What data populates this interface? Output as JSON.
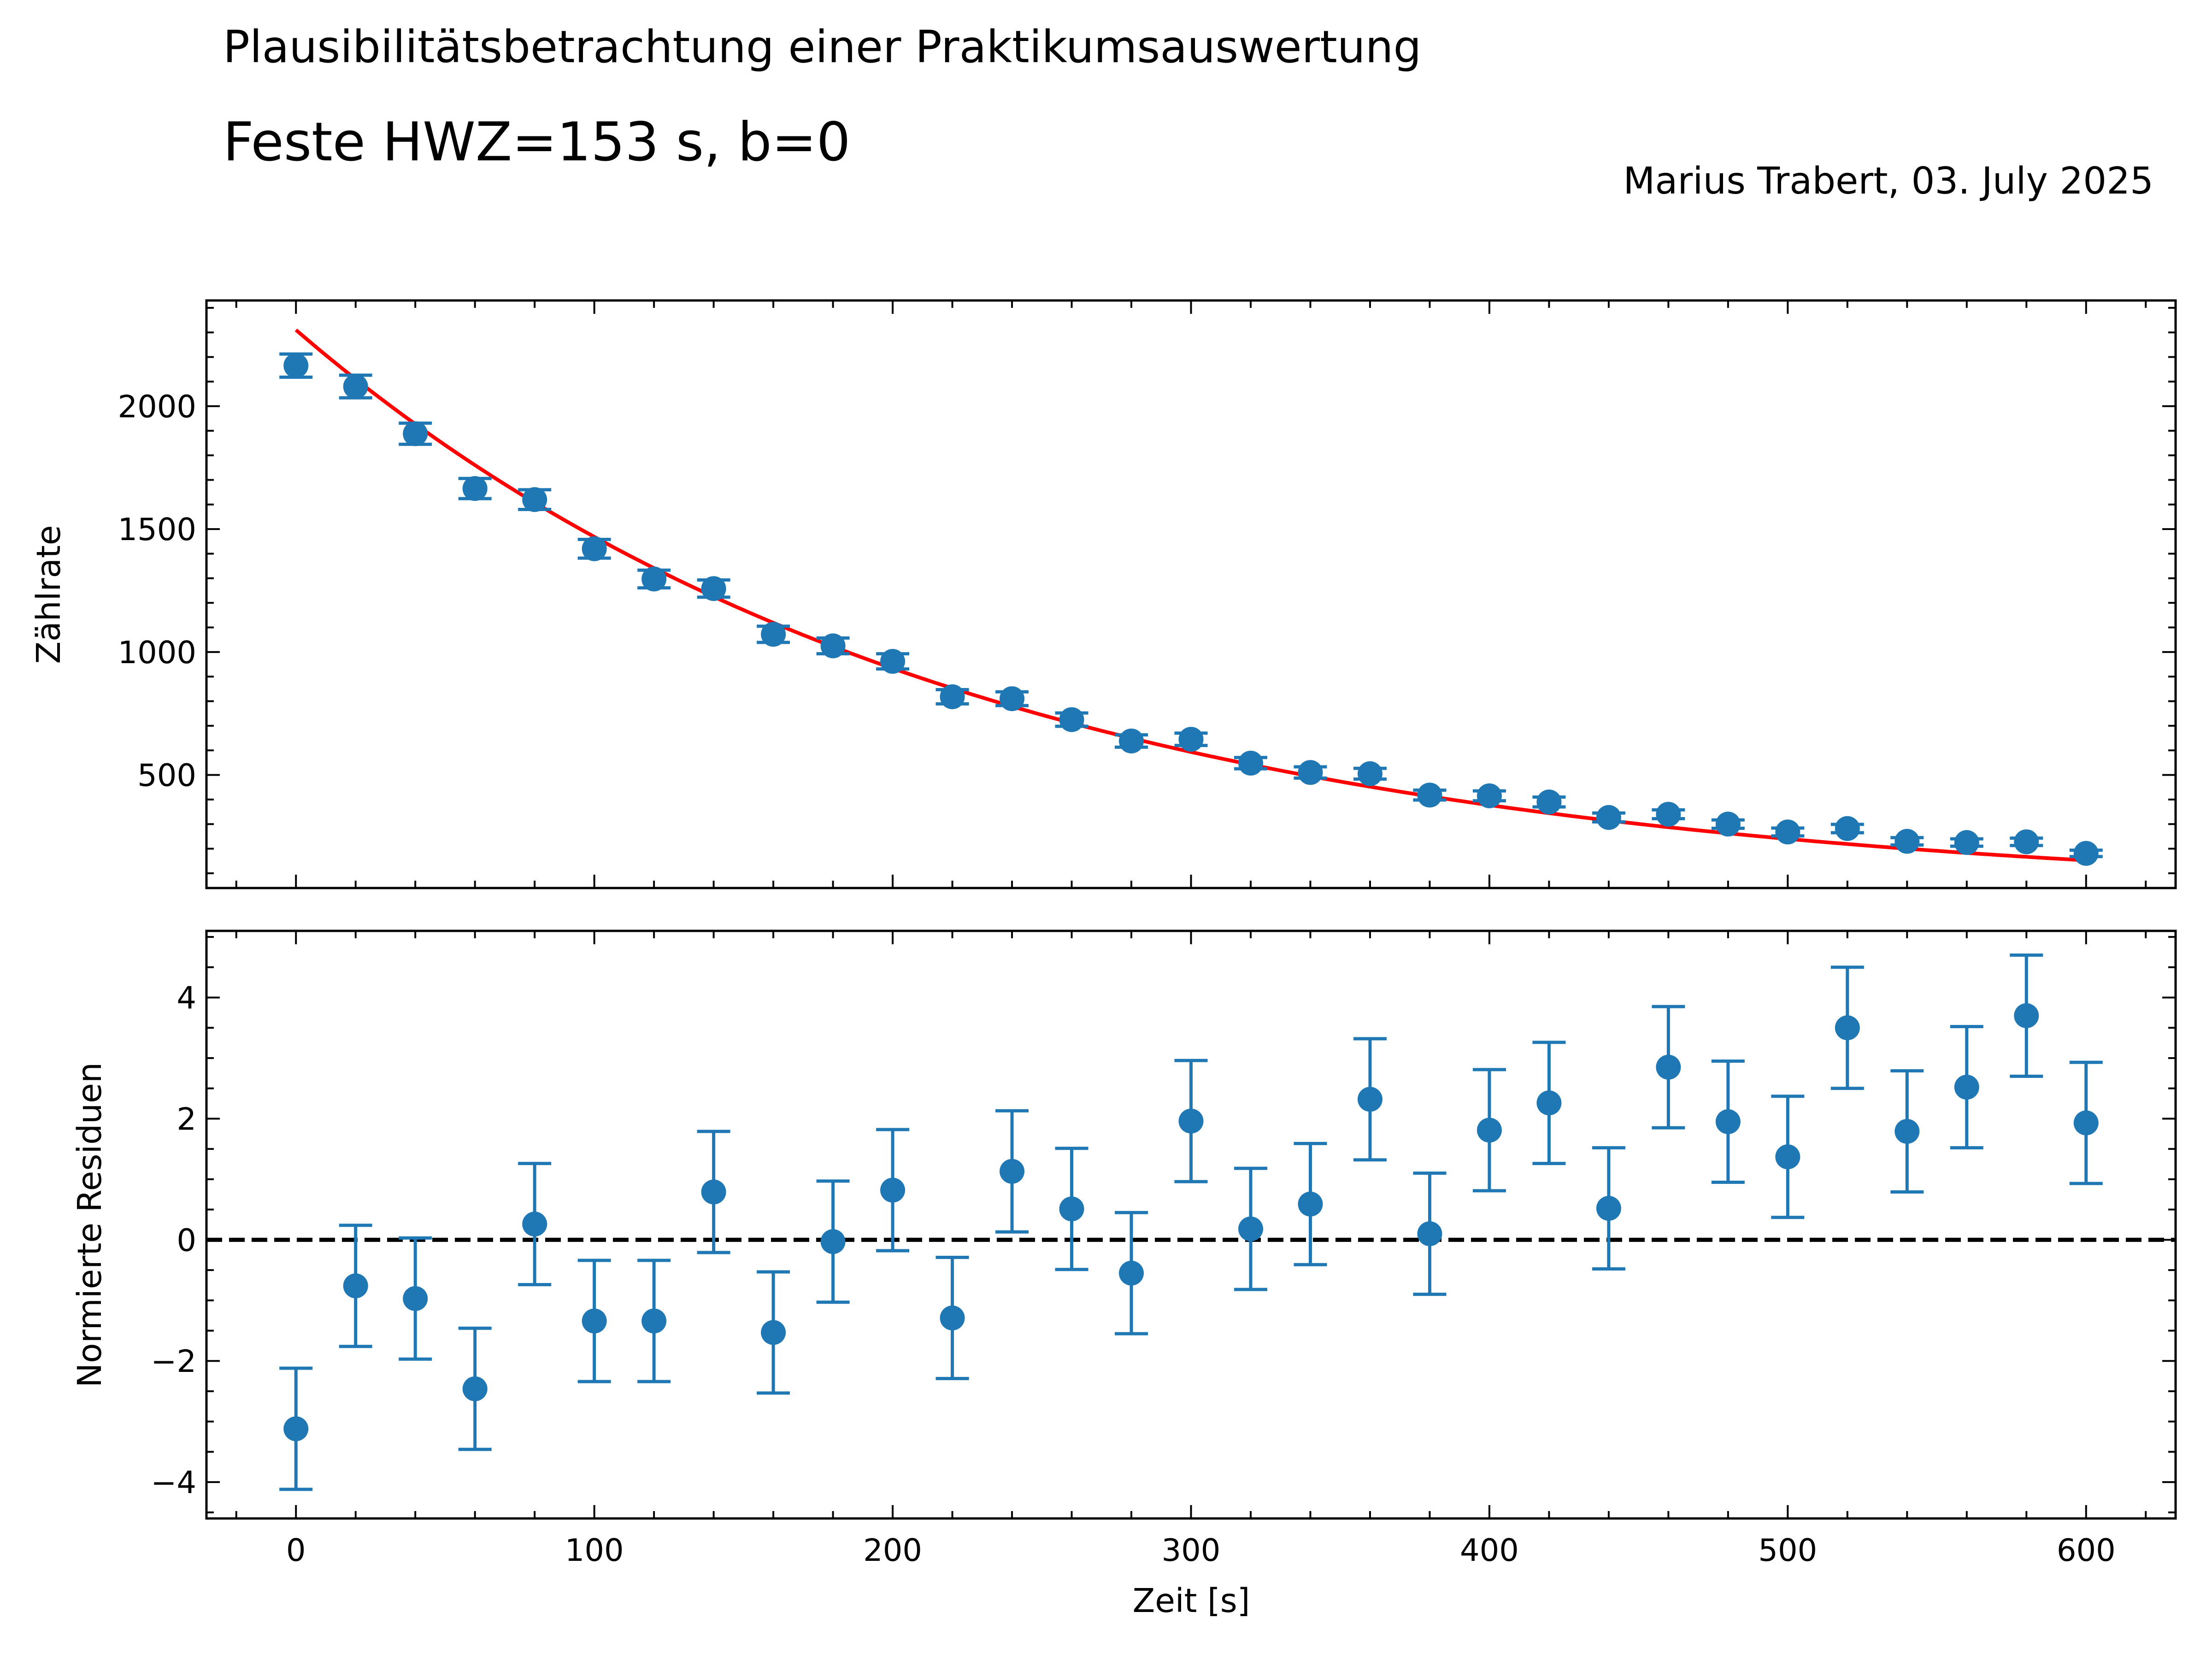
{
  "header": {
    "title": "Plausibilitätsbetrachtung einer Praktikumsauswertung",
    "subtitle": "Feste HWZ=153 s, b=0",
    "author_date": "Marius Trabert, 03. July 2025"
  },
  "colors": {
    "data": "#1f77b4",
    "fit": "#ff0000",
    "zero_line": "#000000"
  },
  "chart_data": [
    {
      "type": "scatter",
      "panel": "top",
      "xlabel": "",
      "ylabel": "Zählrate",
      "xlim": [
        -30,
        630
      ],
      "ylim": [
        40,
        2430
      ],
      "x_ticks": [
        0,
        100,
        200,
        300,
        400,
        500,
        600
      ],
      "y_ticks": [
        500,
        1000,
        1500,
        2000
      ],
      "y_tick_labels": [
        "500",
        "1000",
        "1500",
        "2000"
      ],
      "grid": false,
      "series": [
        {
          "kind": "errorbar",
          "x": [
            0,
            20,
            40,
            60,
            80,
            100,
            120,
            140,
            160,
            180,
            200,
            220,
            240,
            260,
            280,
            300,
            320,
            340,
            360,
            380,
            400,
            420,
            440,
            460,
            480,
            500,
            520,
            540,
            560,
            580,
            600
          ],
          "y": [
            2165,
            2080,
            1888,
            1665,
            1620,
            1420,
            1297,
            1258,
            1072,
            1025,
            962,
            818,
            810,
            725,
            638,
            645,
            548,
            510,
            505,
            418,
            415,
            390,
            327,
            340,
            300,
            268,
            282,
            230,
            225,
            228,
            181
          ],
          "yerr": [
            47,
            46,
            43,
            41,
            40,
            38,
            36,
            35,
            33,
            32,
            31,
            29,
            28,
            27,
            25,
            25,
            23,
            23,
            22,
            20,
            20,
            20,
            18,
            18,
            17,
            16,
            17,
            15,
            15,
            15,
            13
          ]
        },
        {
          "kind": "fit_curve",
          "x_range": [
            0,
            600
          ],
          "amplitude": 2310,
          "half_life": 153,
          "offset": 0
        }
      ]
    },
    {
      "type": "scatter",
      "panel": "bottom",
      "xlabel": "Zeit [s]",
      "ylabel": "Normierte Residuen",
      "xlim": [
        -30,
        630
      ],
      "ylim": [
        -4.6,
        5.1
      ],
      "x_ticks": [
        0,
        100,
        200,
        300,
        400,
        500,
        600
      ],
      "x_tick_labels": [
        "0",
        "100",
        "200",
        "300",
        "400",
        "500",
        "600"
      ],
      "y_ticks": [
        -4,
        -2,
        0,
        2,
        4
      ],
      "y_tick_labels": [
        "−4",
        "−2",
        "0",
        "2",
        "4"
      ],
      "grid": false,
      "series": [
        {
          "kind": "errorbar",
          "x": [
            0,
            20,
            40,
            60,
            80,
            100,
            120,
            140,
            160,
            180,
            200,
            220,
            240,
            260,
            280,
            300,
            320,
            340,
            360,
            380,
            400,
            420,
            440,
            460,
            480,
            500,
            520,
            540,
            560,
            580,
            600
          ],
          "y": [
            -3.12,
            -0.76,
            -0.97,
            -2.46,
            0.26,
            -1.34,
            -1.34,
            0.79,
            -1.53,
            -0.03,
            0.82,
            -1.29,
            1.13,
            0.51,
            -0.55,
            1.96,
            0.18,
            0.59,
            2.32,
            0.1,
            1.81,
            2.26,
            0.52,
            2.85,
            1.95,
            1.37,
            3.5,
            1.79,
            2.52,
            3.7,
            1.93
          ],
          "yerr": 1.0
        },
        {
          "kind": "hline",
          "y": 0,
          "style": "dashed"
        }
      ]
    }
  ]
}
